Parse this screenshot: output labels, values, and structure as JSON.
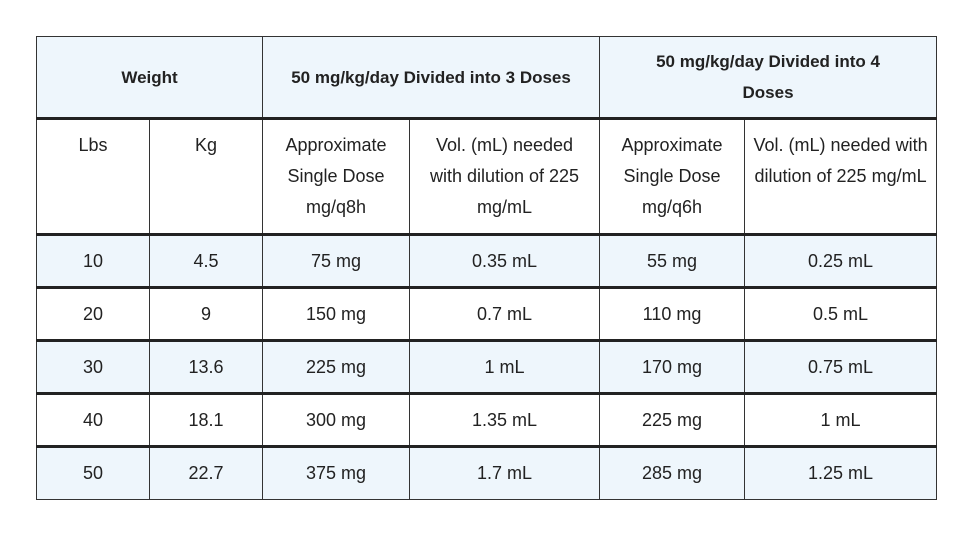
{
  "header": {
    "groups": [
      "Weight",
      "50 mg/kg/day Divided into 3 Doses",
      "50 mg/kg/day Divided into 4 Doses"
    ],
    "subheaders": [
      "Lbs",
      "Kg",
      "Approximate Single Dose mg/q8h",
      "Vol. (mL) needed with dilution of 225 mg/mL",
      "Approximate Single Dose mg/q6h",
      "Vol. (mL) needed with dilution of 225 mg/mL"
    ]
  },
  "table": {
    "rows": [
      [
        "10",
        "4.5",
        "75 mg",
        "0.35 mL",
        "55 mg",
        "0.25 mL"
      ],
      [
        "20",
        "9",
        "150 mg",
        "0.7 mL",
        "110 mg",
        "0.5 mL"
      ],
      [
        "30",
        "13.6",
        "225 mg",
        "1 mL",
        "170 mg",
        "0.75 mL"
      ],
      [
        "40",
        "18.1",
        "300 mg",
        "1.35 mL",
        "225 mg",
        "1 mL"
      ],
      [
        "50",
        "22.7",
        "375 mg",
        "1.7 mL",
        "285 mg",
        "1.25 mL"
      ]
    ]
  }
}
